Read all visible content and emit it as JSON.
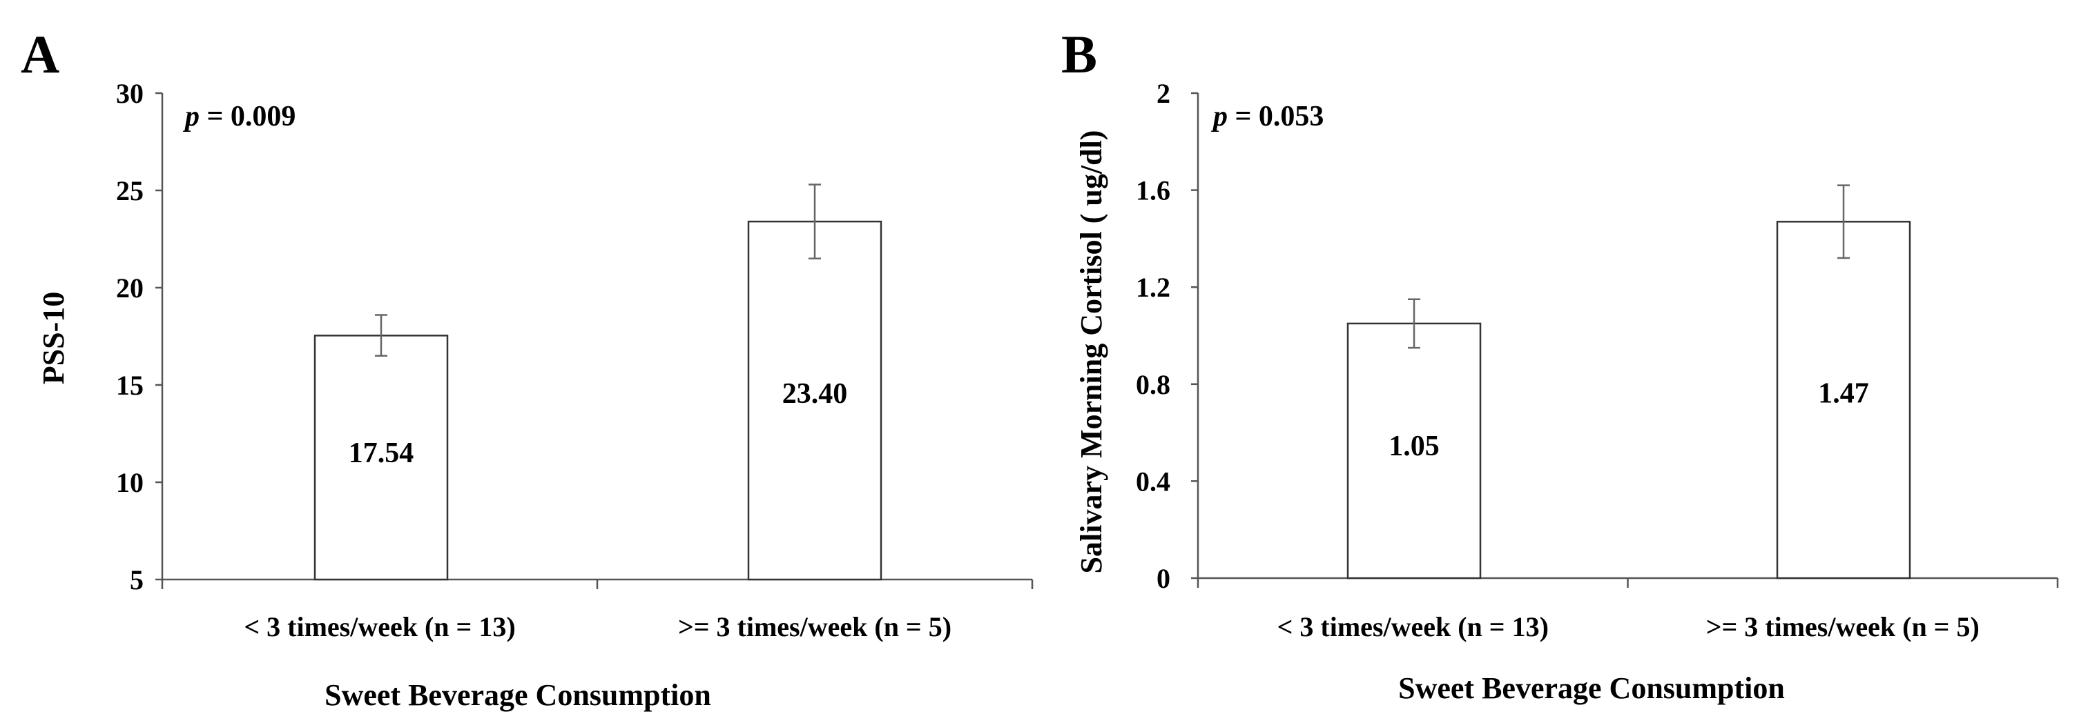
{
  "chart_data": [
    {
      "type": "bar",
      "panel_label": "A",
      "title": "",
      "categories": [
        "< 3 times/week (n = 13)",
        ">= 3 times/week (n = 5)"
      ],
      "values": [
        17.54,
        23.4
      ],
      "value_labels": [
        "17.54",
        "23.40"
      ],
      "error_low": [
        16.5,
        21.5
      ],
      "error_high": [
        18.6,
        25.3
      ],
      "xlabel": "Sweet Beverage Consumption",
      "ylabel": "PSS-10",
      "ylim": [
        5,
        30
      ],
      "yticks": [
        5,
        10,
        15,
        20,
        25,
        30
      ],
      "ytick_labels": [
        "5",
        "10",
        "15",
        "20",
        "25",
        "30"
      ],
      "annotation": {
        "p_symbol": "p",
        "p_text": " = 0.009"
      },
      "grid": false,
      "legend": "none"
    },
    {
      "type": "bar",
      "panel_label": "B",
      "title": "",
      "categories": [
        "< 3 times/week (n = 13)",
        ">= 3 times/week (n = 5)"
      ],
      "values": [
        1.05,
        1.47
      ],
      "value_labels": [
        "1.05",
        "1.47"
      ],
      "error_low": [
        0.95,
        1.32
      ],
      "error_high": [
        1.15,
        1.62
      ],
      "xlabel": "Sweet Beverage Consumption",
      "ylabel": "Salivary Morning Cortisol ( ug/dl)",
      "ylim": [
        0,
        2
      ],
      "yticks": [
        0,
        0.4,
        0.8,
        1.2,
        1.6,
        2
      ],
      "ytick_labels": [
        "0",
        "0.4",
        "0.8",
        "1.2",
        "1.6",
        "2"
      ],
      "annotation": {
        "p_symbol": "p",
        "p_text": " = 0.053"
      },
      "grid": false,
      "legend": "none"
    }
  ]
}
